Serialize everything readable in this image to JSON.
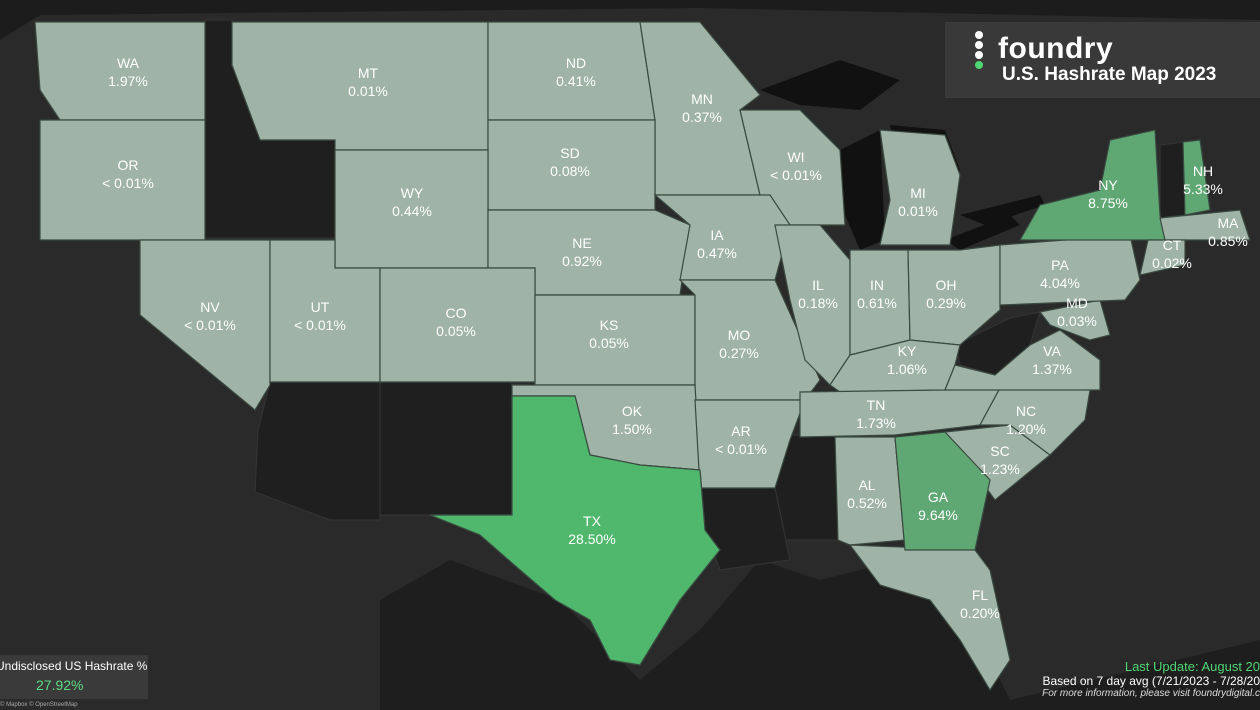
{
  "brand": "foundry",
  "title": "U.S. Hashrate Map 2023",
  "undisclosed": {
    "label": "Undisclosed US Hashrate %",
    "value": "27.92%"
  },
  "footer": {
    "last_update": "Last Update: August 20",
    "based_on": "Based on 7 day avg (7/21/2023 - 7/28/20",
    "more_info": "For more information, please visit foundrydigital.c"
  },
  "credit": "© Mapbox © OpenStreetMap",
  "colors": {
    "low": "#9fb3a6",
    "mid": "#5fa874",
    "high": "#4fb86c",
    "none": "#1f1f1f"
  },
  "states": [
    {
      "abbr": "WA",
      "value": "1.97%"
    },
    {
      "abbr": "OR",
      "value": "< 0.01%"
    },
    {
      "abbr": "MT",
      "value": "0.01%"
    },
    {
      "abbr": "ND",
      "value": "0.41%"
    },
    {
      "abbr": "MN",
      "value": "0.37%"
    },
    {
      "abbr": "SD",
      "value": "0.08%"
    },
    {
      "abbr": "WY",
      "value": "0.44%"
    },
    {
      "abbr": "WI",
      "value": "< 0.01%"
    },
    {
      "abbr": "MI",
      "value": "0.01%"
    },
    {
      "abbr": "NE",
      "value": "0.92%"
    },
    {
      "abbr": "IA",
      "value": "0.47%"
    },
    {
      "abbr": "NV",
      "value": "< 0.01%"
    },
    {
      "abbr": "UT",
      "value": "< 0.01%"
    },
    {
      "abbr": "CO",
      "value": "0.05%"
    },
    {
      "abbr": "KS",
      "value": "0.05%"
    },
    {
      "abbr": "MO",
      "value": "0.27%"
    },
    {
      "abbr": "IL",
      "value": "0.18%"
    },
    {
      "abbr": "IN",
      "value": "0.61%"
    },
    {
      "abbr": "OH",
      "value": "0.29%"
    },
    {
      "abbr": "KY",
      "value": "1.06%"
    },
    {
      "abbr": "OK",
      "value": "1.50%"
    },
    {
      "abbr": "AR",
      "value": "< 0.01%"
    },
    {
      "abbr": "TN",
      "value": "1.73%"
    },
    {
      "abbr": "TX",
      "value": "28.50%"
    },
    {
      "abbr": "AL",
      "value": "0.52%"
    },
    {
      "abbr": "GA",
      "value": "9.64%"
    },
    {
      "abbr": "SC",
      "value": "1.23%"
    },
    {
      "abbr": "NC",
      "value": "1.20%"
    },
    {
      "abbr": "VA",
      "value": "1.37%"
    },
    {
      "abbr": "MD",
      "value": "0.03%"
    },
    {
      "abbr": "PA",
      "value": "4.04%"
    },
    {
      "abbr": "NY",
      "value": "8.75%"
    },
    {
      "abbr": "NH",
      "value": "5.33%"
    },
    {
      "abbr": "MA",
      "value": "0.85%"
    },
    {
      "abbr": "CT",
      "value": "0.02%"
    },
    {
      "abbr": "FL",
      "value": "0.20%"
    }
  ]
}
